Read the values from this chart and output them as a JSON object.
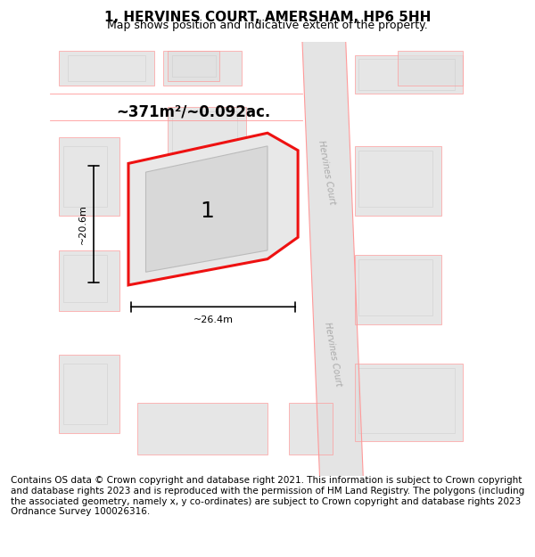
{
  "title": "1, HERVINES COURT, AMERSHAM, HP6 5HH",
  "subtitle": "Map shows position and indicative extent of the property.",
  "footer": "Contains OS data © Crown copyright and database right 2021. This information is subject to Crown copyright and database rights 2023 and is reproduced with the permission of HM Land Registry. The polygons (including the associated geometry, namely x, y co-ordinates) are subject to Crown copyright and database rights 2023 Ordnance Survey 100026316.",
  "area_label": "~371m²/~0.092ac.",
  "width_label": "~26.4m",
  "height_label": "~20.6m",
  "plot_number": "1",
  "bg_color": "#f5f5f5",
  "map_bg": "#f0f0f0",
  "plot_fill": "#e8e8e8",
  "plot_outline": "#ee1111",
  "building_fill": "#e0e0e0",
  "building_outline": "#cccccc",
  "road_color": "#d9d9d9",
  "road_line_color": "#ff9999",
  "road_text_color": "#aaaaaa",
  "dim_line_color": "#222222",
  "road_label": "Hervines Court",
  "title_fontsize": 11,
  "subtitle_fontsize": 9,
  "footer_fontsize": 7.5
}
